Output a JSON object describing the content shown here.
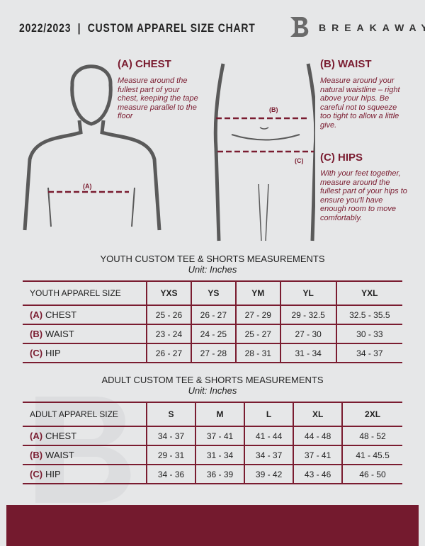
{
  "header": {
    "title": "2022/2023  |  CUSTOM APPAREL SIZE CHART",
    "brand": "BREAKAWAY",
    "logo_letter": "B"
  },
  "colors": {
    "accent": "#7a1c30",
    "background": "#e6e7e8"
  },
  "chest": {
    "heading": "(A) CHEST",
    "desc": "Measure around the fullest part of your chest, keeping the tape measure parallel to the floor",
    "marker": "(A)"
  },
  "waist": {
    "heading": "(B) WAIST",
    "desc": "Measure around your natural waistline – right above your hips. Be careful not to squeeze too tight to allow a little give.",
    "marker": "(B)"
  },
  "hips": {
    "heading": "(C) HIPS",
    "desc": "With your feet together, measure around the fullest part of your hips to ensure you'll have enough room to move comfortably.",
    "marker": "(C)"
  },
  "youth": {
    "title": "YOUTH CUSTOM TEE & SHORTS MEASUREMENTS",
    "unit": "Unit: Inches",
    "size_label": "YOUTH APPAREL SIZE",
    "sizes": [
      "YXS",
      "YS",
      "YM",
      "YL",
      "YXL"
    ],
    "rows": [
      {
        "key": "(A)",
        "label": "CHEST",
        "values": [
          "25 - 26",
          "26 - 27",
          "27 - 29",
          "29 - 32.5",
          "32.5 - 35.5"
        ]
      },
      {
        "key": "(B)",
        "label": "WAIST",
        "values": [
          "23 - 24",
          "24 - 25",
          "25 - 27",
          "27 - 30",
          "30 - 33"
        ]
      },
      {
        "key": "(C)",
        "label": "HIP",
        "values": [
          "26 - 27",
          "27 - 28",
          "28 - 31",
          "31 - 34",
          "34 - 37"
        ]
      }
    ]
  },
  "adult": {
    "title": "ADULT CUSTOM TEE & SHORTS MEASUREMENTS",
    "unit": "Unit: Inches",
    "size_label": "ADULT APPAREL SIZE",
    "sizes": [
      "S",
      "M",
      "L",
      "XL",
      "2XL"
    ],
    "rows": [
      {
        "key": "(A)",
        "label": "CHEST",
        "values": [
          "34 - 37",
          "37 - 41",
          "41 - 44",
          "44 - 48",
          "48 - 52"
        ]
      },
      {
        "key": "(B)",
        "label": "WAIST",
        "values": [
          "29 - 31",
          "31 - 34",
          "34 - 37",
          "37 - 41",
          "41 - 45.5"
        ]
      },
      {
        "key": "(C)",
        "label": "HIP",
        "values": [
          "34 - 36",
          "36 - 39",
          "39 - 42",
          "43 - 46",
          "46 - 50"
        ]
      }
    ]
  }
}
